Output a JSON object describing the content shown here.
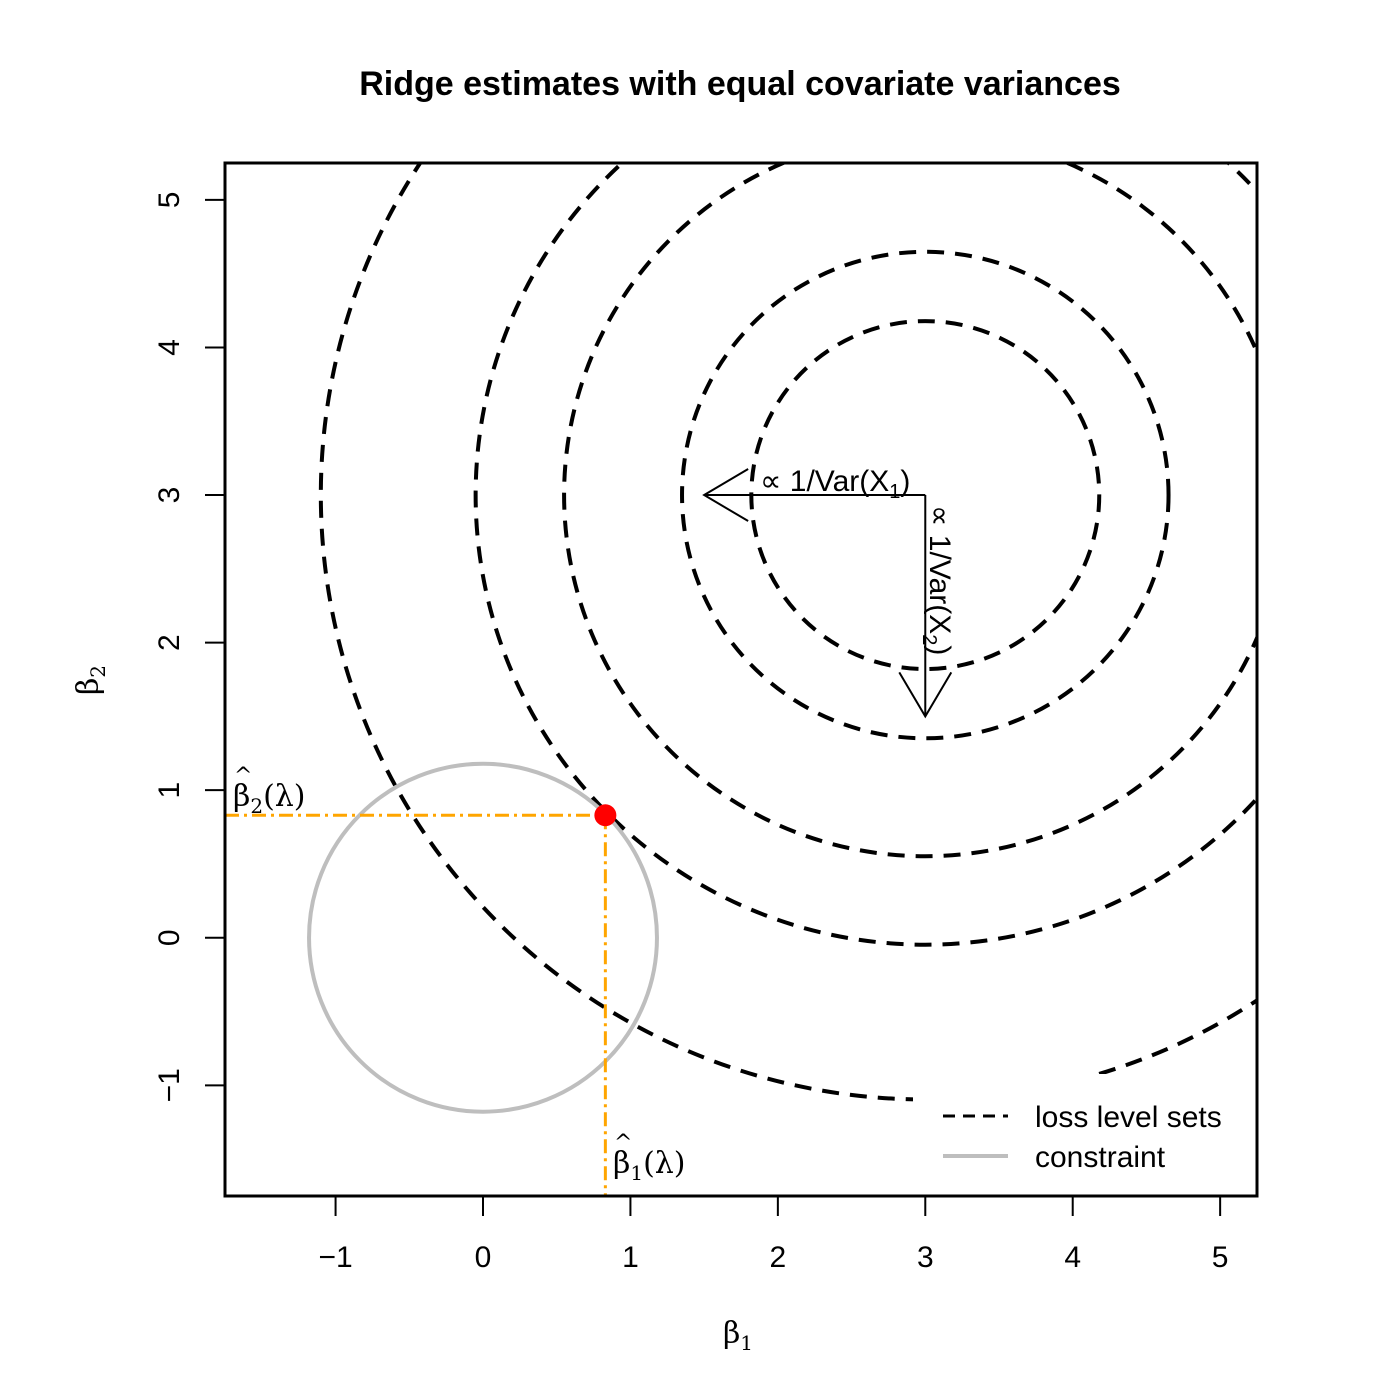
{
  "chart_data": {
    "type": "contour",
    "title": "Ridge estimates with equal covariate variances",
    "xlabel": {
      "main": "β",
      "sub": "1"
    },
    "ylabel": {
      "main": "β",
      "sub": "2"
    },
    "xlim": [
      -1.75,
      5.25
    ],
    "ylim": [
      -1.75,
      5.25
    ],
    "xticks": [
      -1,
      0,
      1,
      2,
      3,
      4,
      5
    ],
    "yticks": [
      -1,
      0,
      1,
      2,
      3,
      4,
      5
    ],
    "xtick_labels": [
      "−1",
      "0",
      "1",
      "2",
      "3",
      "4",
      "5"
    ],
    "ytick_labels": [
      "−1",
      "0",
      "1",
      "2",
      "3",
      "4",
      "5"
    ],
    "loss_center": [
      3,
      3
    ],
    "loss_level_radii": [
      1.18,
      1.65,
      2.45,
      3.05,
      4.1
    ],
    "constraint": {
      "center": [
        0,
        0
      ],
      "radius": 1.18
    },
    "ridge_estimate": [
      0.83,
      0.83
    ],
    "colors": {
      "loss": "#000000",
      "constraint": "#bebebe",
      "guide": "#ffa500",
      "estimate": "#ff0000"
    },
    "annotations": {
      "var_x1": {
        "text": "∝ 1/Var(X",
        "sub": "1",
        "close": ")"
      },
      "var_x2": {
        "text": "∝ 1/Var(X",
        "sub": "2",
        "close": ")"
      },
      "beta1_hat": {
        "main": "β",
        "sub": "1",
        "arg": "(λ)"
      },
      "beta2_hat": {
        "main": "β",
        "sub": "2",
        "arg": "(λ)"
      }
    },
    "arrows": {
      "x1_length": 1.5,
      "x2_length": 1.5
    },
    "legend": {
      "position": "bottom-right",
      "entries": [
        {
          "label": "loss level sets",
          "style": "dashed",
          "color": "#000000"
        },
        {
          "label": "constraint",
          "style": "solid",
          "color": "#bebebe"
        }
      ]
    }
  }
}
